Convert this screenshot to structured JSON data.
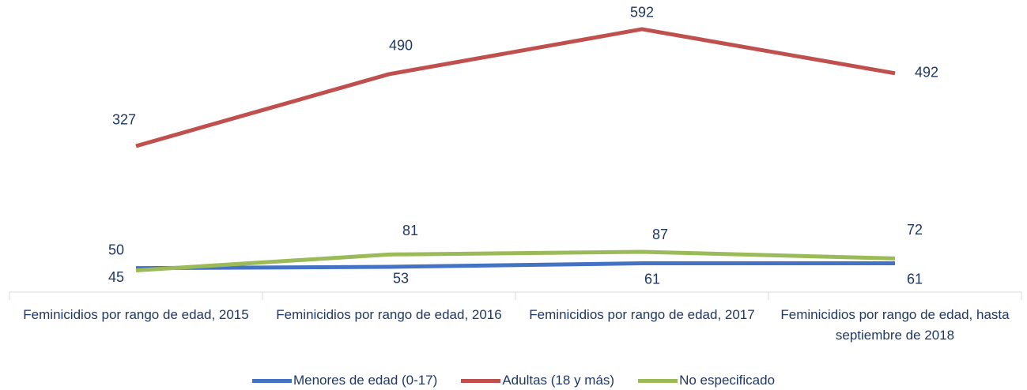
{
  "chart_data": {
    "type": "line",
    "categories": [
      "Feminicidios por rango de edad, 2015",
      "Feminicidios por rango de edad, 2016",
      "Feminicidios por rango de edad, 2017",
      "Feminicidios por rango de edad, hasta septiembre de 2018"
    ],
    "series": [
      {
        "name": "Menores de edad (0-17)",
        "color": "#4472c4",
        "values": [
          50,
          53,
          61,
          61
        ]
      },
      {
        "name": "Adultas (18 y más)",
        "color": "#c0504d",
        "values": [
          327,
          490,
          592,
          492
        ]
      },
      {
        "name": "No especificado",
        "color": "#9bbb59",
        "values": [
          45,
          81,
          87,
          72
        ]
      }
    ],
    "ylim": [
      0,
      600
    ],
    "grid": false,
    "legend": "bottom"
  }
}
